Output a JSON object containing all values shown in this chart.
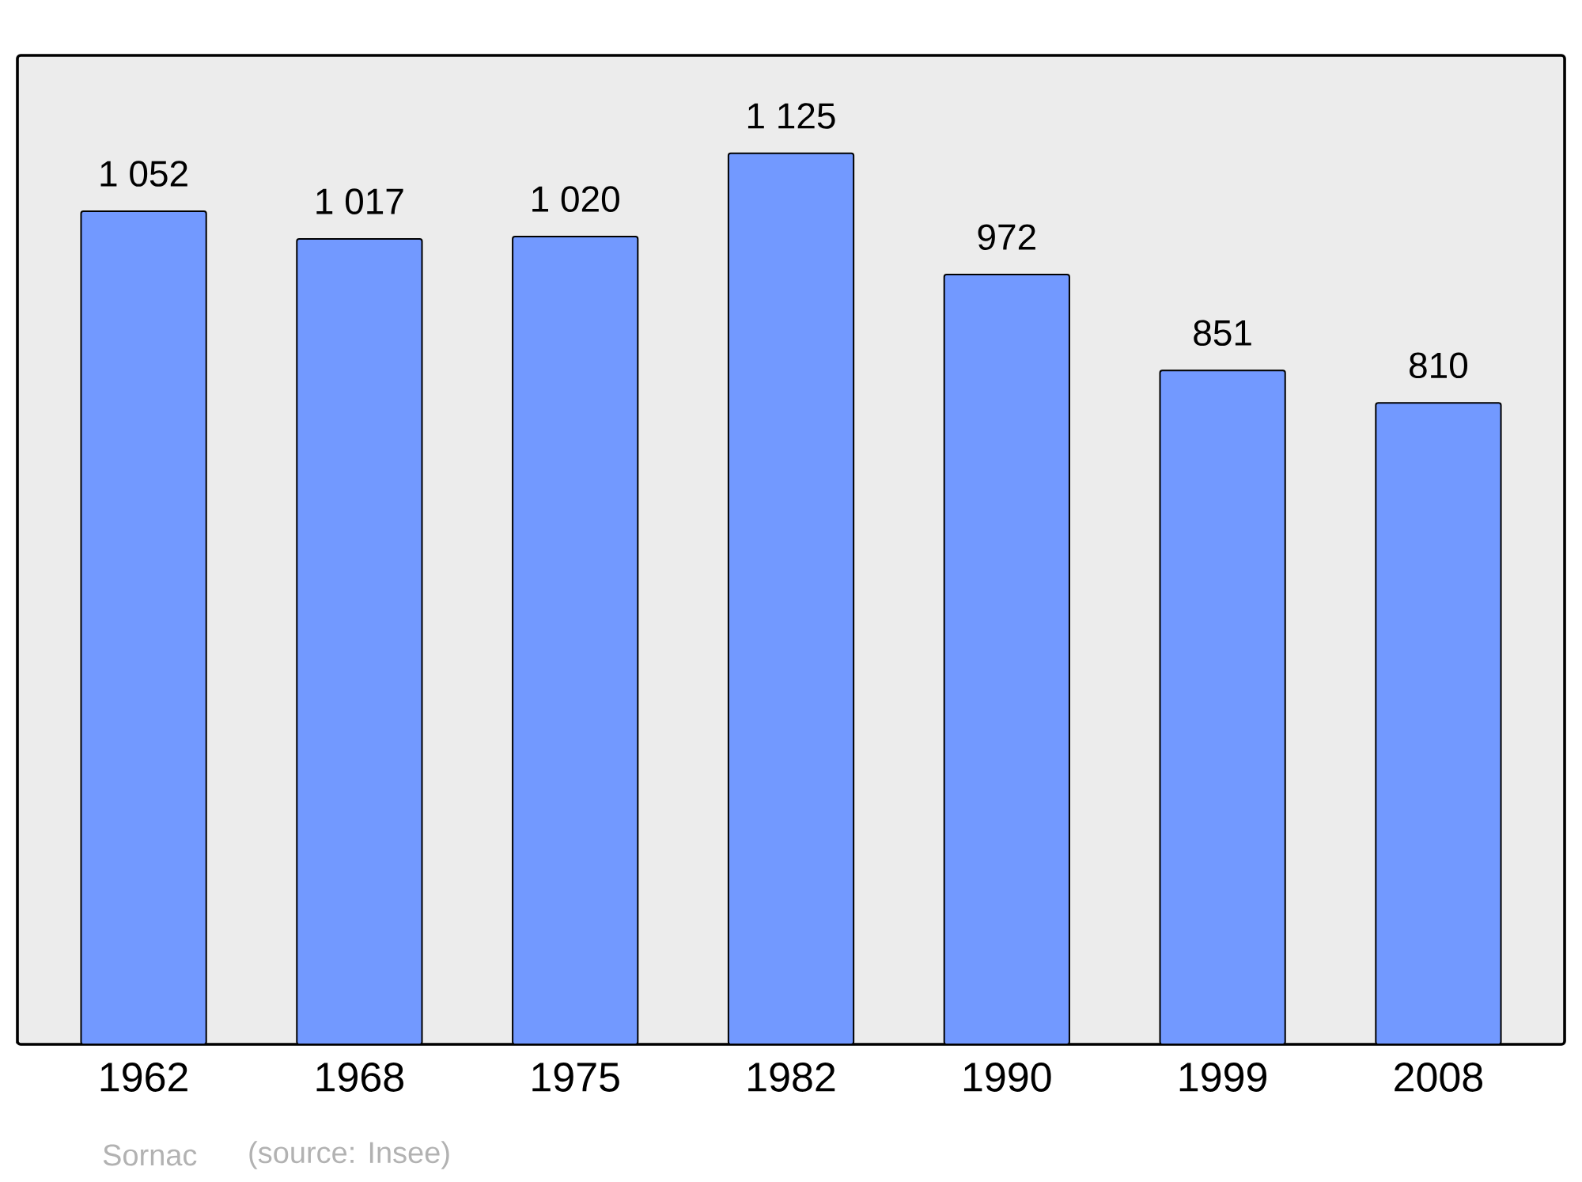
{
  "chart_data": {
    "type": "bar",
    "categories": [
      "1962",
      "1968",
      "1975",
      "1982",
      "1990",
      "1999",
      "2008"
    ],
    "values": [
      1052,
      1017,
      1020,
      1125,
      972,
      851,
      810
    ],
    "value_labels": [
      "1 052",
      "1 017",
      "1 020",
      "1 125",
      "972",
      "851",
      "810"
    ],
    "color": "#7299ff",
    "annotations": [
      "Sornac",
      "(source: Insee)"
    ]
  }
}
